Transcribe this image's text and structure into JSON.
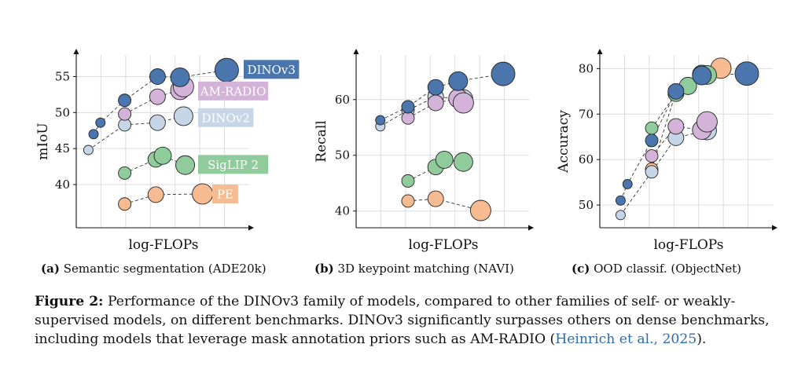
{
  "chart_data": [
    {
      "type": "scatter",
      "panel_label": "(a)",
      "caption": "Semantic segmentation (ADE20k)",
      "xlabel": "log-FLOPs",
      "ylabel": "mIoU",
      "ylim": [
        34,
        58
      ],
      "yticks": [
        40,
        45,
        50,
        55
      ],
      "xlim": [
        0,
        10
      ],
      "grid": true,
      "series": [
        {
          "name": "DINOv3",
          "color": "#4a76ad",
          "x": [
            1.0,
            1.4,
            2.8,
            4.7,
            6.0,
            8.7
          ],
          "y": [
            47.0,
            48.6,
            51.7,
            55.0,
            54.9,
            55.9
          ],
          "size": [
            6,
            6,
            8,
            10,
            12,
            15
          ]
        },
        {
          "name": "AM-RADIO",
          "color": "#d3b3d8",
          "x": [
            2.8,
            4.7,
            6.0,
            6.2
          ],
          "y": [
            49.8,
            52.2,
            53.1,
            53.6
          ],
          "size": [
            8,
            10,
            12,
            13
          ]
        },
        {
          "name": "DINOv2",
          "color": "#c6d6e6",
          "x": [
            0.7,
            2.8,
            4.7,
            6.2
          ],
          "y": [
            44.8,
            48.3,
            48.6,
            49.5
          ],
          "size": [
            6,
            8,
            10,
            12
          ]
        },
        {
          "name": "SigLIP 2",
          "color": "#90cc9b",
          "x": [
            2.8,
            4.6,
            5.0,
            6.3
          ],
          "y": [
            41.6,
            43.5,
            44.0,
            42.7
          ],
          "size": [
            8,
            10,
            11,
            12
          ]
        },
        {
          "name": "PE",
          "color": "#f6bb91",
          "x": [
            2.8,
            4.6,
            7.3
          ],
          "y": [
            37.3,
            38.6,
            38.7
          ],
          "size": [
            8,
            10,
            13
          ]
        }
      ],
      "legend": [
        {
          "label": "DINOv3",
          "y": 56.0
        },
        {
          "label": "AM-RADIO",
          "y": 53.0
        },
        {
          "label": "DINOv2",
          "y": 49.3
        },
        {
          "label": "SigLIP 2",
          "y": 42.8
        },
        {
          "label": "PE",
          "y": 38.7
        }
      ]
    },
    {
      "type": "scatter",
      "panel_label": "(b)",
      "caption": "3D keypoint matching (NAVI)",
      "xlabel": "log-FLOPs",
      "ylabel": "Recall",
      "ylim": [
        37,
        68
      ],
      "yticks": [
        40,
        50,
        60
      ],
      "xlim": [
        0,
        10
      ],
      "grid": true,
      "series": [
        {
          "name": "DINOv3",
          "color": "#4a76ad",
          "x": [
            1.4,
            3.0,
            4.6,
            5.9,
            8.5
          ],
          "y": [
            56.3,
            58.7,
            62.2,
            63.3,
            64.6
          ],
          "size": [
            6,
            8,
            10,
            12,
            15
          ]
        },
        {
          "name": "AM-RADIO",
          "color": "#d3b3d8",
          "x": [
            3.0,
            4.6,
            5.9,
            6.2
          ],
          "y": [
            56.7,
            59.4,
            60.2,
            59.4
          ],
          "size": [
            8,
            10,
            12,
            13
          ]
        },
        {
          "name": "DINOv2",
          "color": "#c6d6e6",
          "x": [
            1.4,
            3.0,
            4.6,
            6.2
          ],
          "y": [
            55.2,
            58.1,
            60.5,
            60.1
          ],
          "size": [
            6,
            8,
            10,
            12
          ]
        },
        {
          "name": "SigLIP 2",
          "color": "#90cc9b",
          "x": [
            3.0,
            4.6,
            5.1,
            6.2
          ],
          "y": [
            45.4,
            47.9,
            49.2,
            48.8
          ],
          "size": [
            8,
            10,
            11,
            12
          ]
        },
        {
          "name": "PE",
          "color": "#f6bb91",
          "x": [
            3.0,
            4.6,
            7.2
          ],
          "y": [
            41.8,
            42.2,
            40.1
          ],
          "size": [
            8,
            10,
            13
          ]
        }
      ]
    },
    {
      "type": "scatter",
      "panel_label": "(c)",
      "caption": "OOD classif. (ObjectNet)",
      "xlabel": "log-FLOPs",
      "ylabel": "Accuracy",
      "ylim": [
        45,
        83
      ],
      "yticks": [
        50,
        60,
        70,
        80
      ],
      "xlim": [
        0,
        10
      ],
      "grid": true,
      "series": [
        {
          "name": "DINOv3",
          "color": "#4a76ad",
          "x": [
            1.2,
            1.6,
            3.0,
            4.4,
            5.9,
            8.5
          ],
          "y": [
            51.0,
            54.6,
            64.2,
            75.0,
            78.5,
            78.9
          ],
          "size": [
            6,
            6,
            8,
            10,
            12,
            15
          ]
        },
        {
          "name": "AM-RADIO",
          "color": "#d3b3d8",
          "x": [
            3.0,
            4.4,
            5.9,
            6.2
          ],
          "y": [
            60.8,
            67.3,
            66.5,
            68.3
          ],
          "size": [
            8,
            10,
            12,
            13
          ]
        },
        {
          "name": "DINOv2",
          "color": "#c6d6e6",
          "x": [
            1.2,
            3.0,
            4.4,
            6.2
          ],
          "y": [
            47.8,
            57.3,
            64.8,
            66.4
          ],
          "size": [
            6,
            8,
            10,
            12
          ]
        },
        {
          "name": "SigLIP 2",
          "color": "#90cc9b",
          "x": [
            3.0,
            4.4,
            5.1,
            6.2
          ],
          "y": [
            66.9,
            74.5,
            76.2,
            78.6
          ],
          "size": [
            8,
            10,
            11,
            12
          ]
        },
        {
          "name": "PE",
          "color": "#f6bb91",
          "x": [
            3.0,
            4.4,
            5.9,
            7.0
          ],
          "y": [
            57.9,
            74.8,
            78.7,
            80.1
          ],
          "size": [
            8,
            10,
            12,
            13
          ]
        }
      ]
    }
  ],
  "figure_caption": {
    "label": "Figure 2:",
    "text": "Performance of the DINOv3 family of models, compared to other families of self- or weakly-supervised models, on different benchmarks. DINOv3 significantly surpasses others on dense benchmarks, including models that leverage mask annotation priors such as AM-RADIO (",
    "citation": "Heinrich et al., 2025",
    "text_end": ")."
  }
}
